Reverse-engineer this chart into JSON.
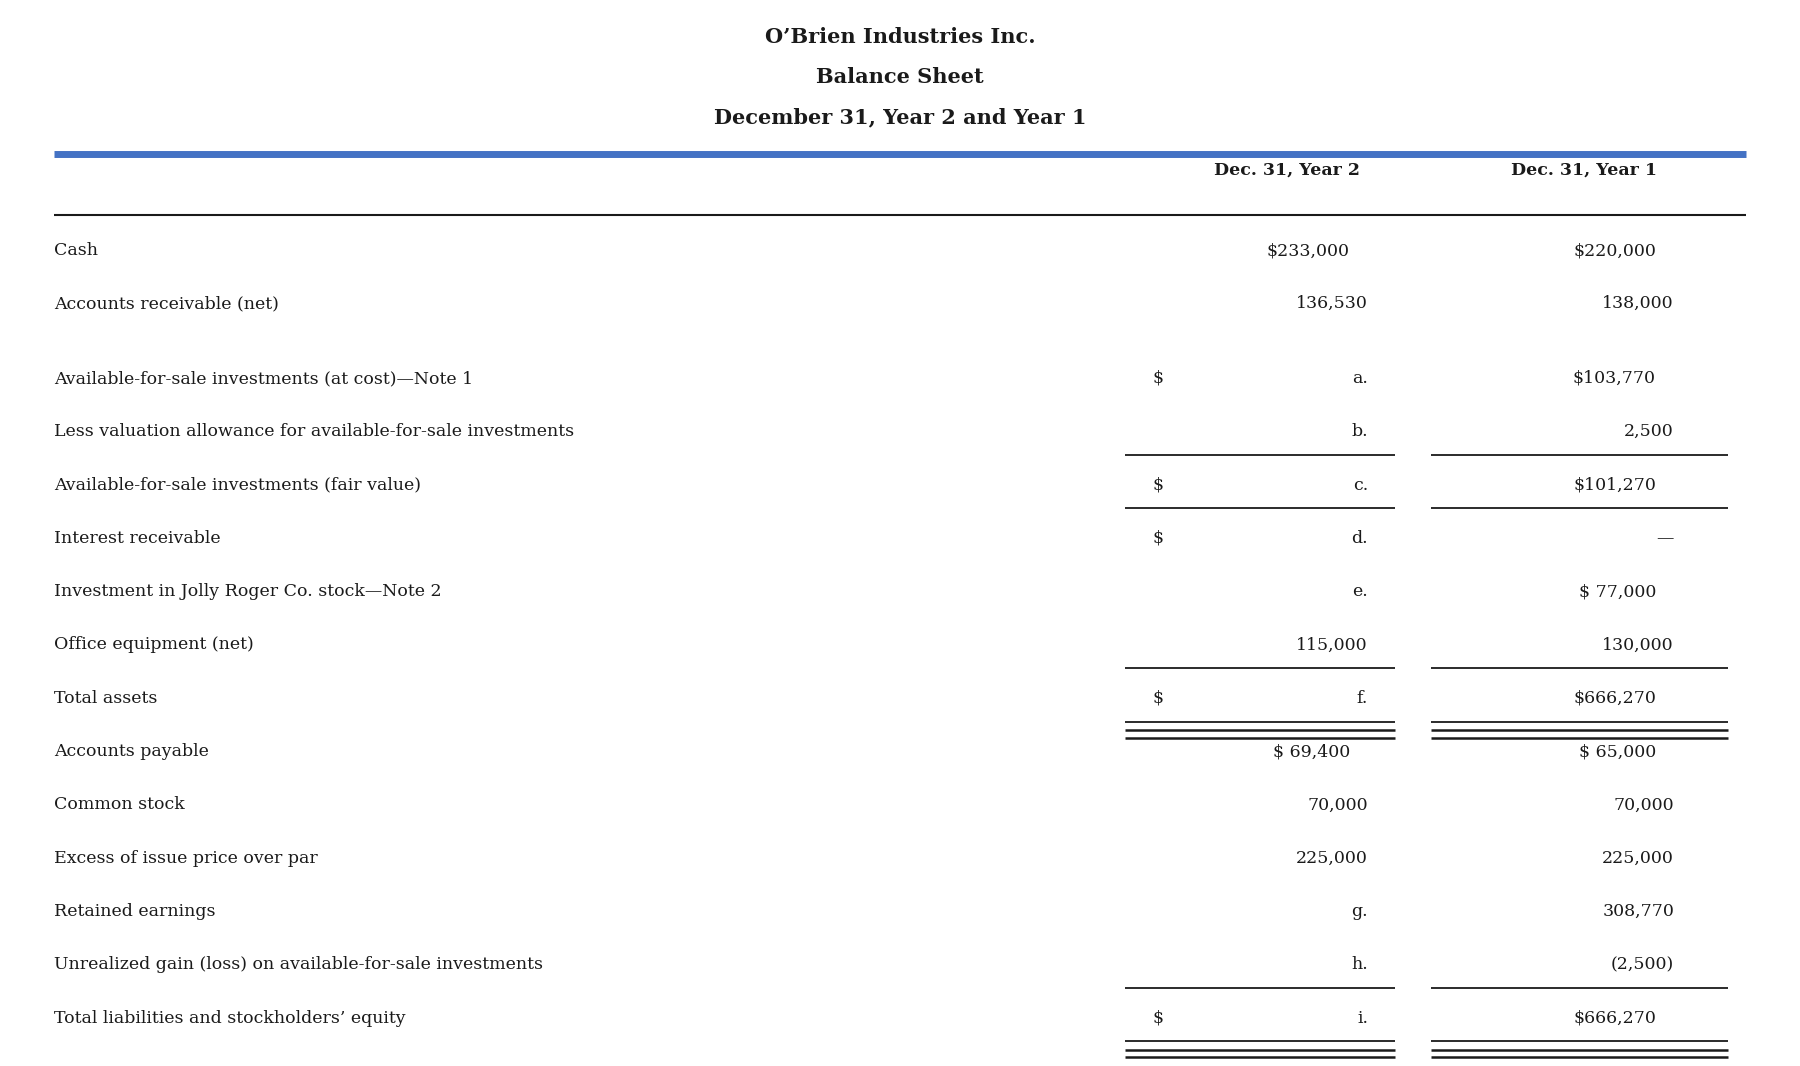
{
  "title_line1": "O’Brien Industries Inc.",
  "title_line2": "Balance Sheet",
  "title_line3": "December 31, Year 2 and Year 1",
  "col_header1": "Dec. 31, Year 2",
  "col_header2": "Dec. 31, Year 1",
  "rows": [
    {
      "label": "Cash",
      "val2": "$233,000",
      "val1": "$220,000",
      "dollar2": false,
      "underline2": false,
      "underline1": false,
      "double2": false,
      "double1": false,
      "blank": false
    },
    {
      "label": "Accounts receivable (net)",
      "val2": "136,530",
      "val1": "138,000",
      "dollar2": false,
      "underline2": false,
      "underline1": false,
      "double2": false,
      "double1": false,
      "blank": false
    },
    {
      "label": "",
      "val2": "",
      "val1": "",
      "dollar2": false,
      "underline2": false,
      "underline1": false,
      "double2": false,
      "double1": false,
      "blank": true
    },
    {
      "label": "Available-for-sale investments (at cost)—Note 1",
      "val2": "a.",
      "val1": "$103,770",
      "dollar2": true,
      "underline2": false,
      "underline1": false,
      "double2": false,
      "double1": false,
      "blank": false
    },
    {
      "label": "Less valuation allowance for available-for-sale investments",
      "val2": "b.",
      "val1": "2,500",
      "dollar2": false,
      "underline2": true,
      "underline1": true,
      "double2": false,
      "double1": false,
      "blank": false
    },
    {
      "label": "Available-for-sale investments (fair value)",
      "val2": "c.",
      "val1": "$101,270",
      "dollar2": true,
      "underline2": true,
      "underline1": true,
      "double2": false,
      "double1": false,
      "blank": false
    },
    {
      "label": "Interest receivable",
      "val2": "d.",
      "val1": "—",
      "dollar2": true,
      "underline2": false,
      "underline1": false,
      "double2": false,
      "double1": false,
      "blank": false
    },
    {
      "label": "Investment in Jolly Roger Co. stock—Note 2",
      "val2": "e.",
      "val1": "$ 77,000",
      "dollar2": false,
      "underline2": false,
      "underline1": false,
      "double2": false,
      "double1": false,
      "blank": false
    },
    {
      "label": "Office equipment (net)",
      "val2": "115,000",
      "val1": "130,000",
      "dollar2": false,
      "underline2": true,
      "underline1": true,
      "double2": false,
      "double1": false,
      "blank": false
    },
    {
      "label": "Total assets",
      "val2": "f.",
      "val1": "$666,270",
      "dollar2": true,
      "underline2": true,
      "underline1": true,
      "double2": true,
      "double1": true,
      "blank": false
    },
    {
      "label": "Accounts payable",
      "val2": "$ 69,400",
      "val1": "$ 65,000",
      "dollar2": false,
      "underline2": false,
      "underline1": false,
      "double2": false,
      "double1": false,
      "blank": false
    },
    {
      "label": "Common stock",
      "val2": "70,000",
      "val1": "70,000",
      "dollar2": false,
      "underline2": false,
      "underline1": false,
      "double2": false,
      "double1": false,
      "blank": false
    },
    {
      "label": "Excess of issue price over par",
      "val2": "225,000",
      "val1": "225,000",
      "dollar2": false,
      "underline2": false,
      "underline1": false,
      "double2": false,
      "double1": false,
      "blank": false
    },
    {
      "label": "Retained earnings",
      "val2": "g.",
      "val1": "308,770",
      "dollar2": false,
      "underline2": false,
      "underline1": false,
      "double2": false,
      "double1": false,
      "blank": false
    },
    {
      "label": "Unrealized gain (loss) on available-for-sale investments",
      "val2": "h.",
      "val1": "(2,500)",
      "dollar2": false,
      "underline2": true,
      "underline1": true,
      "double2": false,
      "double1": false,
      "blank": false
    },
    {
      "label": "Total liabilities and stockholders’ equity",
      "val2": "i.",
      "val1": "$666,270",
      "dollar2": true,
      "underline2": true,
      "underline1": true,
      "double2": true,
      "double1": true,
      "blank": false
    }
  ],
  "bg_color": "#ffffff",
  "text_color": "#1a1a1a",
  "header_line_color": "#4472c4",
  "thin_line_color": "#1a1a1a"
}
